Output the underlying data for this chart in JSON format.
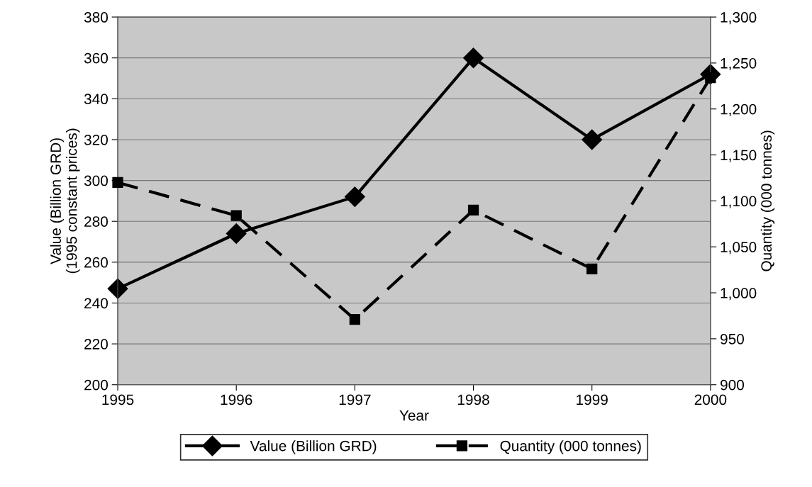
{
  "chart_data": {
    "type": "line",
    "xlabel": "Year",
    "ylabel": "Value (Billion GRD)\n(1995 constant prices)",
    "y2label": "Quantity (000 tonnes)",
    "categories": [
      "1995",
      "1996",
      "1997",
      "1998",
      "1999",
      "2000"
    ],
    "series": [
      {
        "name": "Value (Billion GRD)",
        "color": "#000000",
        "values": [
          247,
          274,
          292,
          360,
          320,
          352
        ],
        "marker": "diamond",
        "line_style": "solid"
      },
      {
        "name": "Quantity (000 tonnes)",
        "color": "#000000",
        "values": [
          1120,
          1084,
          971,
          1090,
          1026,
          1234
        ],
        "marker": "square",
        "line_style": "dashed",
        "axis": "y2"
      }
    ],
    "ylim": [
      200,
      380
    ],
    "yticks": [
      200,
      220,
      240,
      260,
      280,
      300,
      320,
      340,
      360,
      380
    ],
    "y2lim": [
      900,
      1300
    ],
    "y2ticks": [
      {
        "value": 900,
        "label": "900"
      },
      {
        "value": 950,
        "label": "950"
      },
      {
        "value": 1000,
        "label": "1,000"
      },
      {
        "value": 1050,
        "label": "1,050"
      },
      {
        "value": 1100,
        "label": "1,100"
      },
      {
        "value": 1150,
        "label": "1,150"
      },
      {
        "value": 1200,
        "label": "1,200"
      },
      {
        "value": 1250,
        "label": "1,250"
      },
      {
        "value": 1300,
        "label": "1,300"
      }
    ],
    "grid": "y",
    "legend": "bottom"
  }
}
